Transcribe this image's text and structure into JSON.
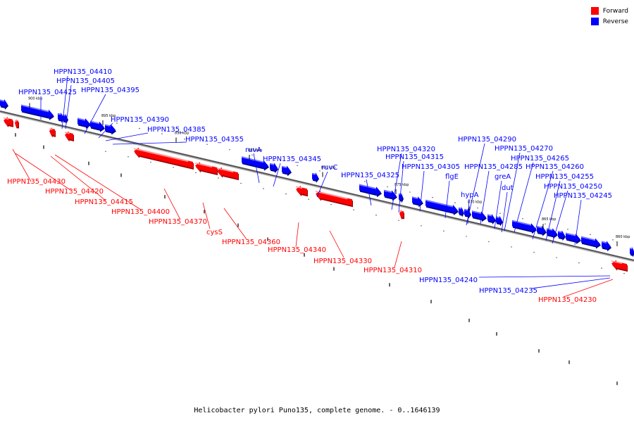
{
  "legend": {
    "forward_label": "Forward",
    "reverse_label": "Reverse",
    "forward_color": "#ff0000",
    "reverse_color": "#0000ff"
  },
  "caption": "Helicobacter pylori Puno135, complete genome. - 0..1646139",
  "ticks": [
    "900 kbp",
    "895 kbp",
    "890 kbp",
    "885 kbp",
    "880 kbp",
    "875 kbp",
    "870 kbp",
    "865 kbp",
    "860 kbp"
  ],
  "forward_genes": [
    "HPPN135_04430",
    "HPPN135_04420",
    "HPPN135_04415",
    "HPPN135_04400",
    "HPPN135_04370",
    "cysS",
    "HPPN135_04360",
    "HPPN135_04340",
    "HPPN135_04330",
    "HPPN135_04310",
    "HPPN135_04230"
  ],
  "reverse_genes": [
    "HPPN135_04410",
    "HPPN135_04405",
    "HPPN135_04425",
    "HPPN135_04395",
    "HPPN135_04390",
    "HPPN135_04385",
    "HPPN135_04355",
    "ruvA",
    "HPPN135_04345",
    "ruvC",
    "HPPN135_04325",
    "HPPN135_04320",
    "HPPN135_04315",
    "HPPN135_04305",
    "flgE",
    "HPPN135_04290",
    "HPPN135_04270",
    "HPPN135_04265",
    "HPPN135_04285",
    "greA",
    "hypA",
    "dut",
    "HPPN135_04260",
    "HPPN135_04255",
    "HPPN135_04250",
    "HPPN135_04245",
    "HPPN135_04240",
    "HPPN135_04235"
  ]
}
